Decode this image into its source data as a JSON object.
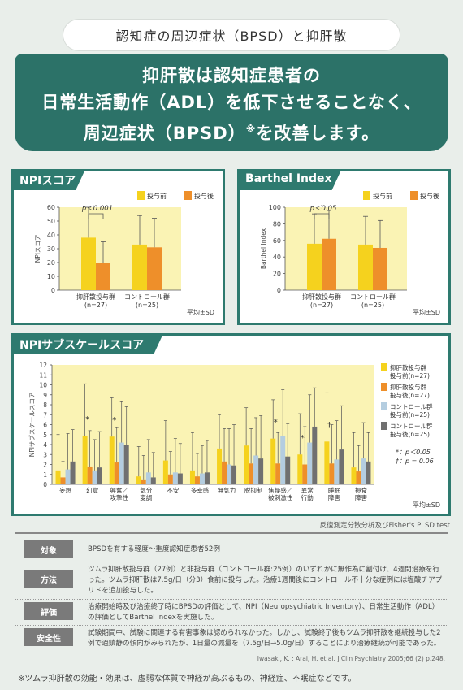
{
  "header": {
    "pill_title": "認知症の周辺症状（BPSD）と抑肝散",
    "banner_line1": "抑肝散は認知症患者の",
    "banner_line2": "日常生活動作（ADL）を低下させることなく、",
    "banner_line3a": "周辺症状（BPSD）",
    "banner_mark": "※",
    "banner_line3b": "を改善します。"
  },
  "colors": {
    "teal": "#2e7a6f",
    "yellow": "#f5d21e",
    "orange": "#ee8f2a",
    "lightblue": "#b4cde0",
    "gray": "#707070",
    "plot_bg": "#faf3b4"
  },
  "chart_data": [
    {
      "type": "bar",
      "title": "NPIスコア",
      "ylabel": "NPIスコア",
      "ylim": [
        0,
        60
      ],
      "yticks": [
        0,
        10,
        20,
        30,
        40,
        50,
        60
      ],
      "categories": [
        "抑肝散投与群\n(n=27)",
        "コントロール群\n(n=25)"
      ],
      "legend": [
        "投与前",
        "投与後"
      ],
      "series": [
        {
          "name": "投与前",
          "values": [
            38,
            33
          ],
          "errors": [
            24,
            21
          ]
        },
        {
          "name": "投与後",
          "values": [
            20,
            31
          ],
          "errors": [
            15,
            21
          ]
        }
      ],
      "significance": "p＜0.001",
      "note": "平均±SD"
    },
    {
      "type": "bar",
      "title": "Barthel Index",
      "ylabel": "Barthel Index",
      "ylim": [
        0,
        100
      ],
      "yticks": [
        0,
        20,
        40,
        60,
        80,
        100
      ],
      "categories": [
        "抑肝散投与群\n(n=27)",
        "コントロール群\n(n=25)"
      ],
      "legend": [
        "投与前",
        "投与後"
      ],
      "series": [
        {
          "name": "投与前",
          "values": [
            56,
            55
          ],
          "errors": [
            36,
            34
          ]
        },
        {
          "name": "投与後",
          "values": [
            62,
            51
          ],
          "errors": [
            34,
            33
          ]
        }
      ],
      "significance": "p＜0.05",
      "note": "平均±SD"
    },
    {
      "type": "bar",
      "title": "NPIサブスケールスコア",
      "ylabel": "NPIサブスケールスコア",
      "ylim": [
        0,
        12
      ],
      "yticks": [
        0,
        1,
        2,
        3,
        4,
        5,
        6,
        7,
        8,
        9,
        10,
        11,
        12
      ],
      "categories": [
        "妄想",
        "幻覚",
        "興奮／\n攻撃性",
        "気分\n変調",
        "不安",
        "多幸感",
        "無気力",
        "脱抑制",
        "焦燥感／\n被刺激性",
        "異常\n行動",
        "睡眠\n障害",
        "摂食\n障害"
      ],
      "series": [
        {
          "name": "抑肝散投与群\n投与前(n=27)",
          "values": [
            1.4,
            4.9,
            4.8,
            0.8,
            2.4,
            1.4,
            3.6,
            3.9,
            4.6,
            3.0,
            4.3,
            1.7
          ],
          "errors": [
            3.6,
            5.2,
            3.9,
            3.0,
            4.0,
            3.8,
            3.4,
            3.8,
            3.9,
            4.1,
            4.9,
            3.5
          ]
        },
        {
          "name": "抑肝散投与群\n投与後(n=27)",
          "values": [
            0.7,
            1.8,
            2.2,
            0.5,
            1.0,
            0.8,
            2.3,
            2.1,
            2.1,
            2.0,
            2.1,
            1.3
          ],
          "errors": [
            1.6,
            3.6,
            3.5,
            2.4,
            2.3,
            2.3,
            3.3,
            3.5,
            3.1,
            3.8,
            3.9,
            2.6
          ]
        },
        {
          "name": "コントロール群\n投与前(n=25)",
          "values": [
            1.5,
            1.4,
            4.2,
            1.2,
            1.2,
            1.1,
            2.0,
            2.9,
            4.9,
            4.2,
            2.5,
            2.6
          ],
          "errors": [
            3.6,
            3.1,
            4.1,
            3.3,
            3.4,
            2.8,
            3.6,
            3.8,
            4.6,
            4.8,
            3.9,
            3.6
          ]
        },
        {
          "name": "コントロール群\n投与後(n=25)",
          "values": [
            2.3,
            1.7,
            4.0,
            0.7,
            1.1,
            1.2,
            1.9,
            2.6,
            2.8,
            5.8,
            3.5,
            2.3
          ],
          "errors": [
            3.2,
            3.6,
            3.8,
            2.5,
            3.0,
            3.2,
            4.1,
            4.3,
            3.3,
            3.9,
            4.4,
            2.9
          ]
        }
      ],
      "markers": [
        {
          "category": "幻覚",
          "symbol": "*"
        },
        {
          "category": "興奮／\n攻撃性",
          "symbol": "*"
        },
        {
          "category": "焦燥感／\n被刺激性",
          "symbol": "*"
        },
        {
          "category": "異常\n行動",
          "symbol": "*"
        },
        {
          "category": "睡眠\n障害",
          "symbol": "†"
        }
      ],
      "significance_legend": [
        "*：p＜0.05",
        "†：p = 0.06"
      ],
      "note": "平均±SD"
    }
  ],
  "method_note": "反復測定分散分析及びFisher's PLSD test",
  "info": {
    "rows": [
      {
        "label": "対象",
        "text": "BPSDを有する軽度〜重度認知症患者52例"
      },
      {
        "label": "方法",
        "text": "ツムラ抑肝散投与群（27例）と非投与群（コントロール群:25例）のいずれかに無作為に割付け、4週間治療を行った。ツムラ抑肝散は7.5g/日（分3）食前に投与した。治療1週間後にコントロール不十分な症例には塩酸チアプリドを追加投与した。"
      },
      {
        "label": "評価",
        "text": "治療開始時及び治療終了時にBPSDの評価として、NPI（Neuropsychiatric Inventory）、日常生活動作（ADL）の評価としてBarthel Indexを実施した。"
      },
      {
        "label": "安全性",
        "text": "試験期間中、試験に関連する有害事象は認められなかった。しかし、試験終了後もツムラ抑肝散を継続投与した2例で過鎮静の傾向がみられたが、1日量の減量を（7.5g/日→5.0g/日）することにより治療継続が可能であった。"
      }
    ]
  },
  "citation": "Iwasaki, K. : Arai, H. et al. J Clin Psychiatry 2005;66 (2) p.248.",
  "footnote": "※ツムラ抑肝散の効能・効果は、虚弱な体質で神経が高ぶるもの、神経症、不眠症などです。"
}
